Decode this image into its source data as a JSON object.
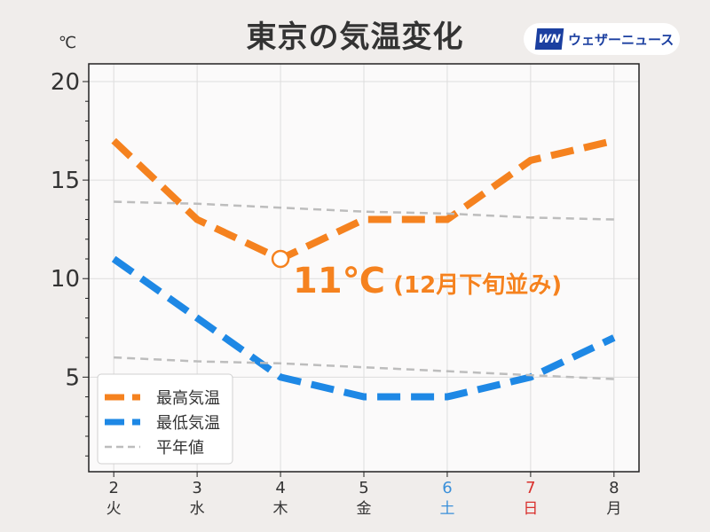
{
  "header": {
    "title": "東京の気温変化"
  },
  "logo": {
    "mark": "WN",
    "text": "ウェザーニュース"
  },
  "colors": {
    "high": "#f5821f",
    "low": "#1e88e5",
    "normal": "#bdbdbd",
    "saturday": "#3a8fd9",
    "sunday": "#d9302c",
    "text": "#333333"
  },
  "chart_data": {
    "type": "line",
    "title": "東京の気温変化",
    "ylabel": "℃",
    "xlabel": "",
    "x": [
      2,
      3,
      4,
      5,
      6,
      7,
      8
    ],
    "x_tick_labels": [
      "2",
      "3",
      "4",
      "5",
      "6",
      "7",
      "8"
    ],
    "weekday_labels": [
      "火",
      "水",
      "木",
      "金",
      "土",
      "日",
      "月"
    ],
    "y_ticks": [
      5,
      10,
      15,
      20
    ],
    "y_tick_labels": [
      "5",
      "10",
      "15",
      "20"
    ],
    "xlim": [
      1.7,
      8.3
    ],
    "ylim": [
      0.2,
      20.9
    ],
    "grid": true,
    "legend_position": "bottom-left",
    "series": [
      {
        "name": "最高気温",
        "key": "high",
        "style": "dashed-thick",
        "values": [
          17,
          13,
          11,
          13,
          13,
          16,
          17
        ]
      },
      {
        "name": "最低気温",
        "key": "low",
        "style": "dashed-thick",
        "values": [
          11,
          8,
          5,
          4,
          4,
          5,
          7
        ]
      },
      {
        "name": "平年値",
        "key": "normal",
        "style": "dashed-thin",
        "values": [
          13.9,
          13.8,
          13.6,
          13.4,
          13.3,
          13.1,
          13.0
        ]
      },
      {
        "name": "平年値",
        "key": "normal",
        "style": "dashed-thin",
        "legend": false,
        "values": [
          6.0,
          5.8,
          5.7,
          5.5,
          5.3,
          5.1,
          4.9
        ]
      }
    ],
    "annotation": {
      "x": 4,
      "y": 11,
      "text": "11℃",
      "subtext": "(12月下旬並み)"
    }
  }
}
